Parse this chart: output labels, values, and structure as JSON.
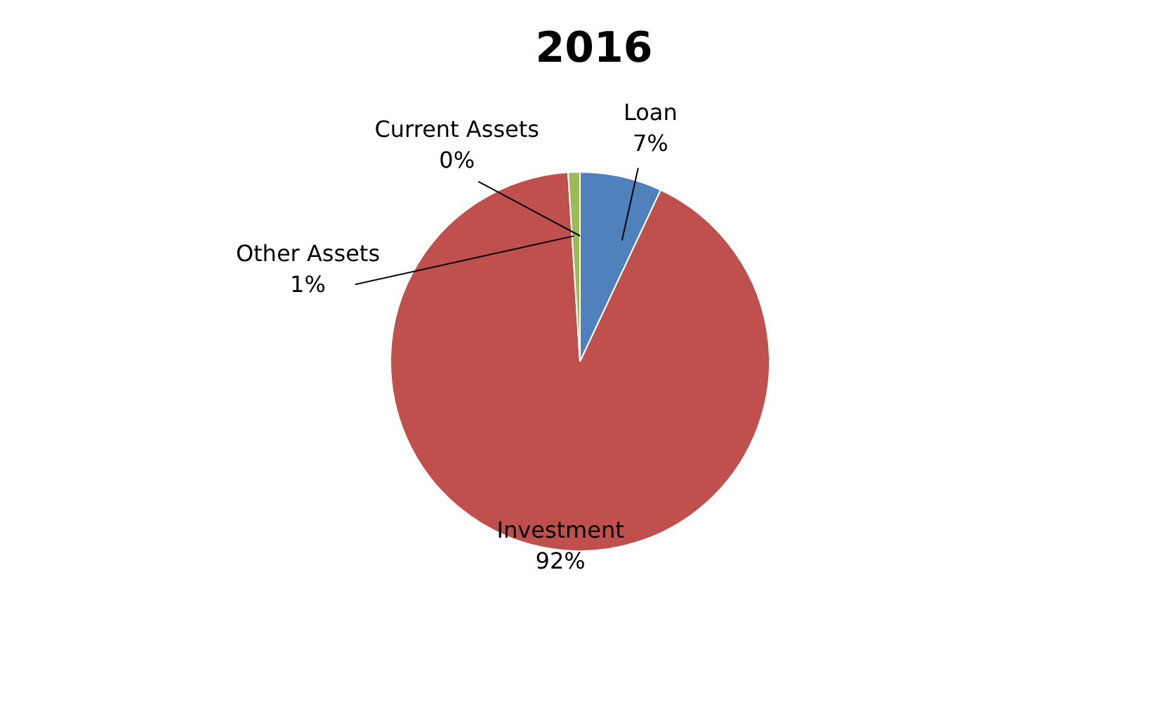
{
  "chart_data": {
    "type": "pie",
    "title": "2016",
    "categories": [
      "Loan",
      "Investment",
      "Other Assets",
      "Current Assets"
    ],
    "values": [
      7,
      92,
      1,
      0
    ],
    "value_labels": [
      "7%",
      "92%",
      "1%",
      "0%"
    ],
    "colors": [
      "#4f81bd",
      "#c0504d",
      "#9bbb59",
      "#8064a2"
    ]
  }
}
